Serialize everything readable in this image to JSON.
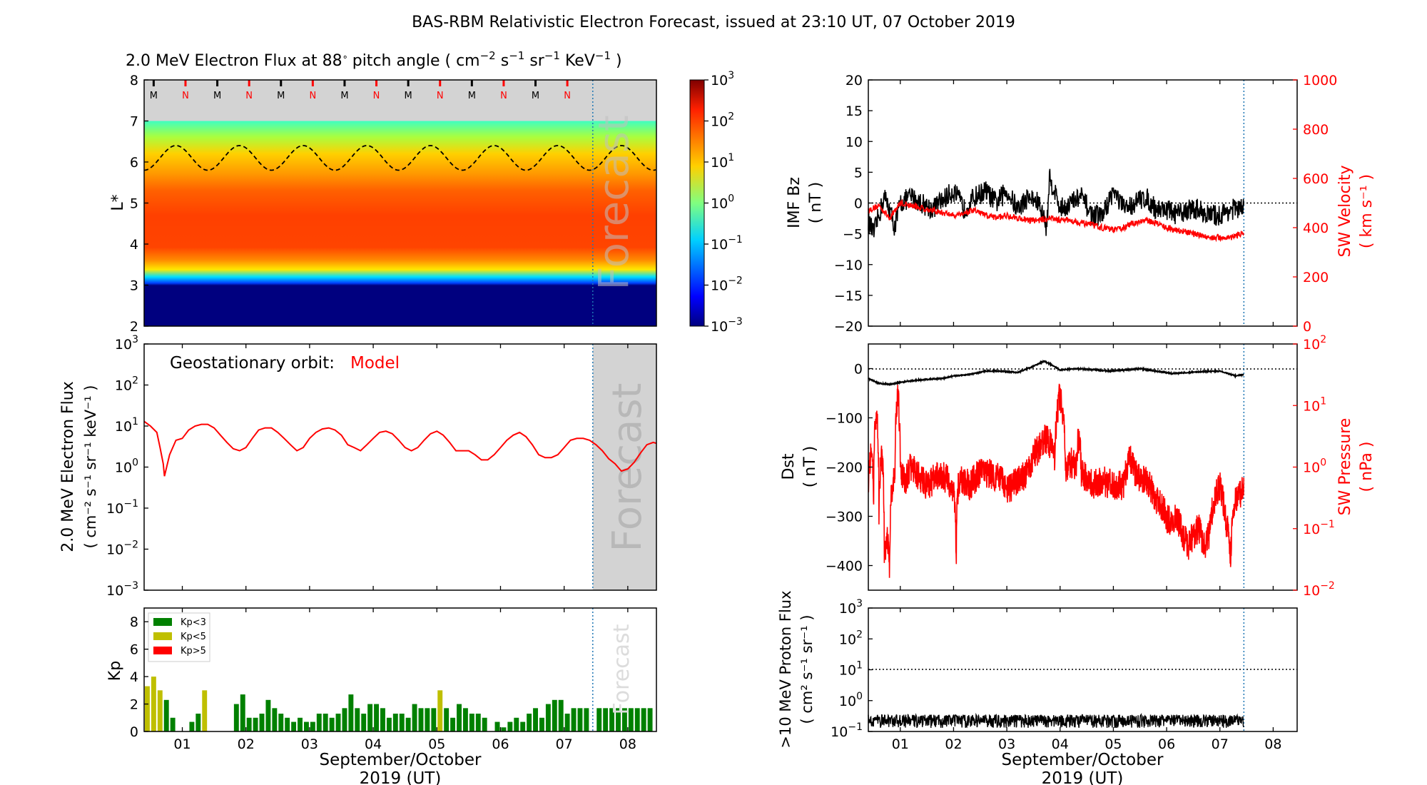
{
  "title": "BAS-RBM Relativistic Electron Forecast, issued at 23:10 UT, 07 October 2019",
  "colors": {
    "model": "#ff0000",
    "black": "#000000",
    "forecast_shade": "#d3d3d3",
    "kp_low": "#008000",
    "kp_mid": "#bfbf00",
    "kp_high": "#ff0000",
    "forecast_line": "#1f77b4"
  },
  "x_axis": {
    "ticks": [
      "01",
      "02",
      "03",
      "04",
      "05",
      "06",
      "07",
      "08"
    ],
    "label_line1": "September/October",
    "label_line2": "2019 (UT)"
  },
  "panels": {
    "spectrogram": {
      "title_text": "2.0 MeV Electron Flux at 88",
      "title_unit": "pitch angle ( cm",
      "ylabel": "L*",
      "ytick_labels": [
        "2",
        "3",
        "4",
        "5",
        "6",
        "7",
        "8"
      ],
      "mn_markers": [
        "M",
        "N",
        "M",
        "N",
        "M",
        "N",
        "M",
        "N",
        "M",
        "N",
        "M",
        "N",
        "M",
        "N"
      ],
      "forecast_text": "Forecast",
      "colorbar_ticks": [
        "10",
        "10",
        "10",
        "10",
        "10",
        "10",
        "10"
      ],
      "colorbar_exps": [
        "3",
        "2",
        "1",
        "0",
        "−1",
        "−2",
        "−3"
      ]
    },
    "geo": {
      "label_prefix": "Geostationary orbit:",
      "label_model": "Model",
      "ylabel1": "2.0 MeV Electron Flux",
      "ylabel2": "( cm⁻² s⁻¹ sr⁻¹ keV⁻¹ )",
      "forecast_text": "Forecast",
      "ytick_exps": [
        "3",
        "2",
        "1",
        "0",
        "−1",
        "−2",
        "−3"
      ]
    },
    "kp": {
      "ylabel": "Kp",
      "ytick_labels": [
        "0",
        "2",
        "4",
        "6",
        "8"
      ],
      "legend": [
        "Kp<3",
        "Kp<5",
        "Kp>5"
      ],
      "forecast_text": "Forecast"
    },
    "imf": {
      "ylabel_left1": "IMF Bz",
      "ylabel_left2": "( nT )",
      "ylabel_right1": "SW Velocity",
      "ylabel_right2": "( km s⁻¹ )",
      "ytick_left": [
        "20",
        "15",
        "10",
        "5",
        "0",
        "−5",
        "−10",
        "−15",
        "−20"
      ],
      "ytick_right": [
        "1000",
        "800",
        "600",
        "400",
        "200",
        "0"
      ]
    },
    "dst": {
      "ylabel_left1": "Dst",
      "ylabel_left2": "( nT )",
      "ylabel_right1": "SW Pressure",
      "ylabel_right2": "( nPa )",
      "ytick_left": [
        "0",
        "−100",
        "−200",
        "−300",
        "−400"
      ],
      "ytick_right_exps": [
        "2",
        "1",
        "0",
        "−1",
        "−2"
      ]
    },
    "proton": {
      "ylabel1": ">10 MeV Proton Flux",
      "ylabel2": "( cm² s⁻¹ sr⁻¹ )",
      "ytick_exps": [
        "3",
        "2",
        "1",
        "0",
        "−1"
      ]
    }
  },
  "chart_data": [
    {
      "type": "heatmap",
      "title": "2.0 MeV Electron Flux at 88° pitch angle ( cm⁻² s⁻¹ sr⁻¹ KeV⁻¹ )",
      "ylabel": "L*",
      "ylim": [
        2,
        8
      ],
      "xlim": [
        0.4,
        8.45
      ],
      "color_scale": "log",
      "clim": [
        0.001,
        1000
      ],
      "forecast_start": 7.45,
      "profile_L": [
        2.0,
        3.0,
        3.1,
        3.3,
        3.6,
        4.0,
        4.5,
        5.0,
        5.5,
        6.0,
        6.5,
        7.0
      ],
      "profile_log10_flux": [
        -3,
        -3,
        -2.2,
        -1.0,
        0.8,
        2.1,
        2.2,
        2.0,
        1.4,
        0.6,
        -0.1,
        -0.8
      ],
      "geostationary_L": {
        "mean": 6.1,
        "amplitude": 0.3,
        "period_days": 1
      },
      "data_gap_above_L": 7
    },
    {
      "type": "line",
      "series": [
        {
          "name": "Model",
          "x": [
            0.4,
            0.5,
            0.6,
            0.65,
            0.7,
            0.72,
            0.8,
            0.9,
            1.0,
            1.1,
            1.2,
            1.3,
            1.4,
            1.5,
            1.6,
            1.7,
            1.8,
            1.9,
            2.0,
            2.1,
            2.2,
            2.3,
            2.4,
            2.5,
            2.6,
            2.7,
            2.8,
            2.9,
            3.0,
            3.1,
            3.2,
            3.3,
            3.4,
            3.5,
            3.6,
            3.7,
            3.8,
            3.9,
            4.0,
            4.1,
            4.2,
            4.3,
            4.4,
            4.5,
            4.6,
            4.7,
            4.8,
            4.9,
            5.0,
            5.1,
            5.2,
            5.3,
            5.4,
            5.5,
            5.6,
            5.7,
            5.8,
            5.9,
            6.0,
            6.1,
            6.2,
            6.3,
            6.4,
            6.5,
            6.6,
            6.7,
            6.8,
            6.9,
            7.0,
            7.1,
            7.2,
            7.3,
            7.4,
            7.5,
            7.6,
            7.7,
            7.8,
            7.9,
            8.0,
            8.1,
            8.2,
            8.3,
            8.4,
            8.45
          ],
          "y": [
            13,
            10,
            7,
            3,
            1.2,
            0.6,
            2,
            4.5,
            5,
            8,
            10,
            11,
            11,
            9,
            6,
            4,
            2.8,
            2.5,
            3,
            5,
            8,
            9,
            9,
            7,
            5,
            3.5,
            2.5,
            3,
            5,
            7,
            8.5,
            9,
            8,
            6,
            3.5,
            3,
            2.5,
            3.5,
            5,
            7,
            7.5,
            6.5,
            4.5,
            3,
            2.5,
            3,
            4.5,
            6.5,
            7.5,
            6,
            4,
            2.5,
            2.5,
            2.5,
            2,
            1.5,
            1.5,
            2,
            3,
            4.5,
            6,
            7,
            5.5,
            3.5,
            2,
            1.7,
            1.7,
            2,
            3,
            4.5,
            5,
            5,
            4.5,
            3.5,
            2.5,
            1.6,
            1.2,
            0.8,
            0.9,
            1.3,
            2.2,
            3.5,
            4,
            3.8
          ]
        }
      ],
      "xlim": [
        0.4,
        8.45
      ],
      "ylim": [
        0.001,
        1000
      ],
      "yscale": "log",
      "forecast_start": 7.45
    },
    {
      "type": "bar",
      "ylabel": "Kp",
      "ylim": [
        0,
        9
      ],
      "bar_width_days": 0.1,
      "x": [
        0.45,
        0.55,
        0.65,
        0.75,
        0.85,
        0.95,
        1.05,
        1.15,
        1.25,
        1.35,
        1.45,
        1.55,
        1.65,
        1.75,
        1.85,
        1.95,
        2.05,
        2.15,
        2.25,
        2.35,
        2.45,
        2.55,
        2.65,
        2.75,
        2.85,
        2.95,
        3.05,
        3.15,
        3.25,
        3.35,
        3.45,
        3.55,
        3.65,
        3.75,
        3.85,
        3.95,
        4.05,
        4.15,
        4.25,
        4.35,
        4.45,
        4.55,
        4.65,
        4.75,
        4.85,
        4.95,
        5.05,
        5.15,
        5.25,
        5.35,
        5.45,
        5.55,
        5.65,
        5.75,
        5.85,
        5.95,
        6.05,
        6.15,
        6.25,
        6.35,
        6.45,
        6.55,
        6.65,
        6.75,
        6.85,
        6.95,
        7.05,
        7.15,
        7.25,
        7.35,
        7.55,
        7.65,
        7.75,
        7.85,
        7.95,
        8.05,
        8.15,
        8.25,
        8.35
      ],
      "values": [
        3.3,
        4,
        3,
        2.3,
        1,
        0,
        0,
        0.7,
        1.3,
        3,
        0,
        0,
        0,
        0,
        2,
        2.7,
        1,
        1,
        1.3,
        2.3,
        1.7,
        1.3,
        1,
        0.7,
        1,
        0.7,
        0.7,
        1.3,
        1.3,
        1,
        1.3,
        1.7,
        2.7,
        1.7,
        1.3,
        2,
        2,
        1.7,
        1,
        1.3,
        1.3,
        1,
        2,
        1.7,
        1.7,
        1.7,
        3,
        1.7,
        1,
        2,
        1.7,
        1.3,
        1.3,
        1,
        0,
        0.7,
        0.3,
        0.7,
        1,
        0.7,
        1.3,
        1.7,
        1,
        2,
        2.3,
        2.3,
        1.3,
        1.7,
        1.7,
        1.7,
        1.7,
        1.7,
        1.7,
        1.7,
        1.7,
        1.7,
        1.7,
        1.7,
        1.7
      ],
      "forecast_start": 7.45
    },
    {
      "type": "line",
      "left_axis": {
        "label": "IMF Bz ( nT )",
        "ylim": [
          -20,
          20
        ]
      },
      "right_axis": {
        "label": "SW Velocity ( km s⁻¹ )",
        "ylim": [
          0,
          1000
        ]
      },
      "series": [
        {
          "name": "IMF Bz",
          "axis": "left",
          "x": [
            0.4,
            0.5,
            0.6,
            0.7,
            0.8,
            0.9,
            1.0,
            1.2,
            1.4,
            1.6,
            1.8,
            2.0,
            2.2,
            2.4,
            2.6,
            2.8,
            3.0,
            3.2,
            3.4,
            3.6,
            3.75,
            3.8,
            3.9,
            4.0,
            4.2,
            4.4,
            4.6,
            4.8,
            5.0,
            5.2,
            5.4,
            5.6,
            5.8,
            6.0,
            6.2,
            6.4,
            6.6,
            6.8,
            7.0,
            7.2,
            7.45
          ],
          "y": [
            -3,
            -5,
            -2,
            1,
            -1,
            -4,
            0,
            1,
            0,
            -1,
            0.5,
            2,
            -1,
            1,
            2,
            0,
            2,
            -1,
            1,
            0,
            -4,
            4,
            2,
            -1,
            0,
            1,
            -2,
            -2,
            2,
            -1,
            0,
            1,
            -1,
            -1,
            -2,
            -1,
            -1,
            -2,
            -2,
            -1,
            -1
          ]
        },
        {
          "name": "SW Velocity",
          "axis": "right",
          "x": [
            0.4,
            0.6,
            0.8,
            1.0,
            1.2,
            1.4,
            1.6,
            1.8,
            2.0,
            2.2,
            2.4,
            2.6,
            2.8,
            3.0,
            3.2,
            3.4,
            3.6,
            3.8,
            4.0,
            4.2,
            4.4,
            4.6,
            4.8,
            5.0,
            5.2,
            5.4,
            5.6,
            5.8,
            6.0,
            6.2,
            6.4,
            6.6,
            6.8,
            7.0,
            7.2,
            7.45
          ],
          "y": [
            470,
            490,
            440,
            500,
            490,
            480,
            470,
            460,
            450,
            460,
            470,
            450,
            440,
            450,
            440,
            430,
            430,
            440,
            430,
            430,
            420,
            410,
            400,
            390,
            400,
            420,
            430,
            420,
            400,
            390,
            380,
            370,
            360,
            360,
            360,
            380
          ]
        }
      ],
      "forecast_start": 7.45
    },
    {
      "type": "line",
      "left_axis": {
        "label": "Dst ( nT )",
        "ylim": [
          -450,
          50
        ]
      },
      "right_axis": {
        "label": "SW Pressure ( nPa )",
        "ylim": [
          0.01,
          100
        ],
        "scale": "log"
      },
      "series": [
        {
          "name": "Dst",
          "axis": "left",
          "x": [
            0.4,
            0.6,
            0.8,
            1.0,
            1.2,
            1.5,
            1.8,
            2.0,
            2.3,
            2.6,
            2.9,
            3.2,
            3.5,
            3.7,
            3.8,
            4.0,
            4.3,
            4.6,
            4.9,
            5.2,
            5.5,
            5.8,
            6.1,
            6.4,
            6.7,
            7.0,
            7.3,
            7.45
          ],
          "y": [
            -20,
            -30,
            -32,
            -28,
            -25,
            -22,
            -20,
            -15,
            -12,
            -5,
            -5,
            -8,
            5,
            15,
            10,
            -3,
            0,
            -2,
            -5,
            -3,
            0,
            -5,
            -10,
            -8,
            -6,
            -5,
            -15,
            -12
          ]
        },
        {
          "name": "SW Pressure",
          "axis": "right",
          "x": [
            0.4,
            0.45,
            0.5,
            0.55,
            0.6,
            0.65,
            0.7,
            0.75,
            0.8,
            0.85,
            0.9,
            0.95,
            1.0,
            1.1,
            1.2,
            1.3,
            1.5,
            1.7,
            1.8,
            1.9,
            2.0,
            2.05,
            2.1,
            2.2,
            2.3,
            2.5,
            2.7,
            2.9,
            3.0,
            3.2,
            3.4,
            3.5,
            3.6,
            3.7,
            3.8,
            3.9,
            4.0,
            4.1,
            4.2,
            4.3,
            4.35,
            4.4,
            4.5,
            4.6,
            4.8,
            5.0,
            5.2,
            5.3,
            5.4,
            5.5,
            5.6,
            5.8,
            6.0,
            6.1,
            6.2,
            6.3,
            6.4,
            6.5,
            6.6,
            6.7,
            6.8,
            6.9,
            7.0,
            7.1,
            7.2,
            7.3,
            7.4,
            7.45
          ],
          "y": [
            0.5,
            1.5,
            0.3,
            8,
            0.2,
            1.5,
            0.03,
            0.08,
            0.02,
            0.5,
            0.6,
            15,
            0.8,
            0.6,
            1.0,
            0.8,
            0.5,
            0.7,
            0.7,
            0.6,
            0.4,
            0.02,
            0.6,
            0.6,
            0.5,
            0.8,
            0.8,
            0.6,
            0.4,
            0.6,
            0.8,
            1.5,
            2.0,
            3.0,
            2.5,
            1.5,
            15,
            0.8,
            1.2,
            1.0,
            3,
            0.8,
            0.7,
            0.5,
            0.6,
            0.5,
            0.5,
            1.5,
            0.8,
            0.7,
            0.6,
            0.3,
            0.15,
            0.12,
            0.15,
            0.08,
            0.05,
            0.08,
            0.1,
            0.05,
            0.08,
            0.3,
            0.5,
            0.15,
            0.03,
            0.3,
            0.4,
            0.4
          ]
        }
      ],
      "forecast_start": 7.45
    },
    {
      "type": "line",
      "ylabel": ">10 MeV Proton Flux ( cm² s⁻¹ sr⁻¹ )",
      "ylim": [
        0.1,
        1000
      ],
      "yscale": "log",
      "series": [
        {
          "name": ">10 MeV Proton Flux",
          "x": [
            0.4,
            1.0,
            2.0,
            3.0,
            4.0,
            5.0,
            6.0,
            7.0,
            7.45
          ],
          "y": [
            0.2,
            0.2,
            0.2,
            0.2,
            0.2,
            0.2,
            0.2,
            0.2,
            0.2
          ]
        }
      ],
      "threshold": 10,
      "forecast_start": 7.45
    }
  ]
}
